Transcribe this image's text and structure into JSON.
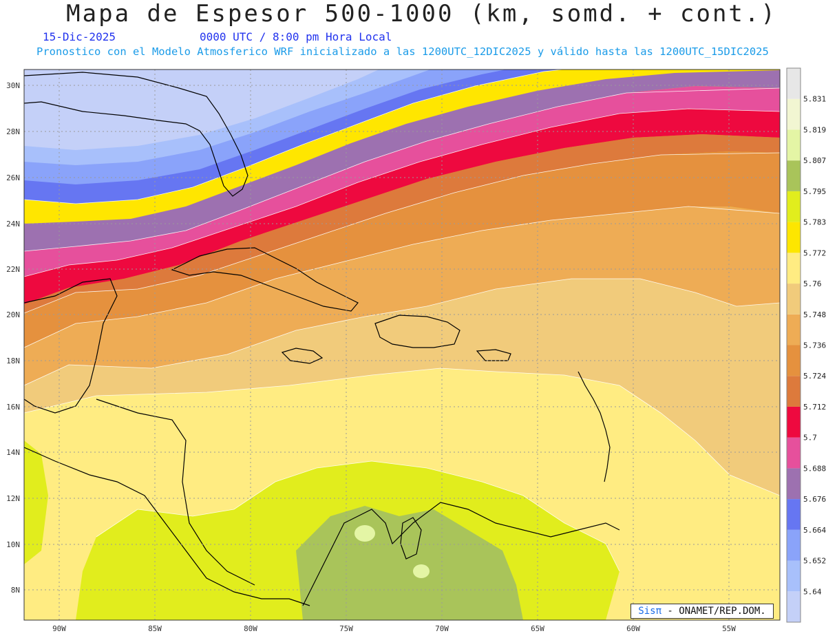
{
  "header": {
    "title": "Mapa de Espesor 500-1000 (km, somd. + cont.)",
    "date": "15-Dic-2025",
    "time": "0000 UTC / 8:00 pm Hora Local",
    "info": "Pronostico con el Modelo Atmosferico WRF inicializado a las 1200UTC_12DIC2025 y válido hasta las  1200UTC_15DIC2025"
  },
  "map": {
    "lat_labels": [
      "30N",
      "28N",
      "26N",
      "24N",
      "22N",
      "20N",
      "18N",
      "16N",
      "14N",
      "12N",
      "10N",
      "8N"
    ],
    "lon_labels": [
      "90W",
      "85W",
      "80W",
      "75W",
      "70W",
      "65W",
      "60W",
      "55W"
    ]
  },
  "legend": {
    "levels": [
      "5.64",
      "5.652",
      "5.664",
      "5.676",
      "5.688",
      "5.7",
      "5.712",
      "5.724",
      "5.736",
      "5.748",
      "5.76",
      "5.772",
      "5.783",
      "5.795",
      "5.807",
      "5.819",
      "5.831"
    ],
    "colors": [
      "#c4d0f8",
      "#a8c0fb",
      "#8aa3fa",
      "#6676f2",
      "#9d71b0",
      "#e6509c",
      "#ee093f",
      "#dd7a3c",
      "#e5913e",
      "#eeac55",
      "#f1cb7b",
      "#ffec82",
      "#fde600",
      "#e1ed1d",
      "#a9c45a",
      "#e4f5a5",
      "#f2f6d2",
      "#e7e7e7"
    ]
  },
  "credit": {
    "brand": "Sisπ",
    "text": " - ONAMET/REP.DOM."
  }
}
